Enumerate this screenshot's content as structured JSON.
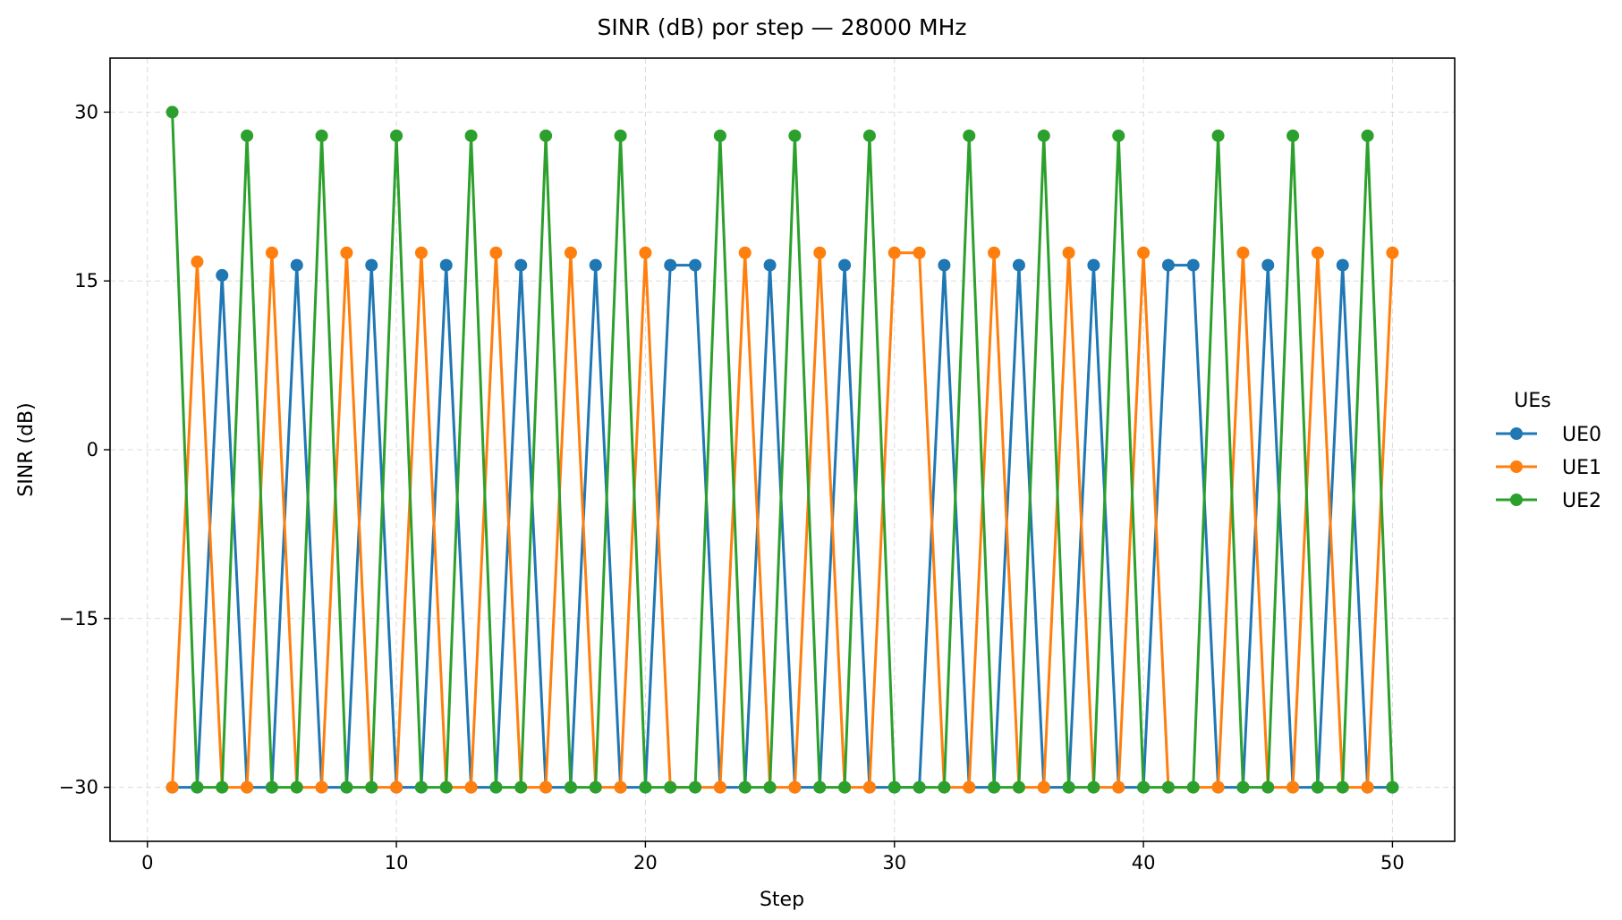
{
  "chart_data": {
    "type": "line",
    "title": "SINR (dB) por step — 28000 MHz",
    "xlabel": "Step",
    "ylabel": "SINR (dB)",
    "xlim": [
      -1.5,
      52.5
    ],
    "ylim": [
      -34.8,
      34.8
    ],
    "xticks": [
      0,
      10,
      20,
      30,
      40,
      50
    ],
    "yticks": [
      30,
      15,
      0,
      -15,
      -30
    ],
    "ytick_labels": [
      "30",
      "15",
      "0",
      "−15",
      "−30"
    ],
    "grid": true,
    "legend": {
      "title": "UEs",
      "position": "outside-right"
    },
    "x": [
      1,
      2,
      3,
      4,
      5,
      6,
      7,
      8,
      9,
      10,
      11,
      12,
      13,
      14,
      15,
      16,
      17,
      18,
      19,
      20,
      21,
      22,
      23,
      24,
      25,
      26,
      27,
      28,
      29,
      30,
      31,
      32,
      33,
      34,
      35,
      36,
      37,
      38,
      39,
      40,
      41,
      42,
      43,
      44,
      45,
      46,
      47,
      48,
      49,
      50
    ],
    "series": [
      {
        "name": "UE0",
        "color": "#1f77b4",
        "values": [
          -30,
          -30,
          15.5,
          -30,
          -30,
          16.4,
          -30,
          -30,
          16.4,
          -30,
          -30,
          16.4,
          -30,
          -30,
          16.4,
          -30,
          -30,
          16.4,
          -30,
          -30,
          16.4,
          16.4,
          -30,
          -30,
          16.4,
          -30,
          -30,
          16.4,
          -30,
          -30,
          -30,
          16.4,
          -30,
          -30,
          16.4,
          -30,
          -30,
          16.4,
          -30,
          -30,
          16.4,
          16.4,
          -30,
          -30,
          16.4,
          -30,
          -30,
          16.4,
          -30,
          -30
        ]
      },
      {
        "name": "UE1",
        "color": "#ff7f0e",
        "values": [
          -30,
          16.7,
          -30,
          -30,
          17.5,
          -30,
          -30,
          17.5,
          -30,
          -30,
          17.5,
          -30,
          -30,
          17.5,
          -30,
          -30,
          17.5,
          -30,
          -30,
          17.5,
          -30,
          -30,
          -30,
          17.5,
          -30,
          -30,
          17.5,
          -30,
          -30,
          17.5,
          17.5,
          -30,
          -30,
          17.5,
          -30,
          -30,
          17.5,
          -30,
          -30,
          17.5,
          -30,
          -30,
          -30,
          17.5,
          -30,
          -30,
          17.5,
          -30,
          -30,
          17.5
        ]
      },
      {
        "name": "UE2",
        "color": "#2ca02c",
        "values": [
          30,
          -30,
          -30,
          27.9,
          -30,
          -30,
          27.9,
          -30,
          -30,
          27.9,
          -30,
          -30,
          27.9,
          -30,
          -30,
          27.9,
          -30,
          -30,
          27.9,
          -30,
          -30,
          -30,
          27.9,
          -30,
          -30,
          27.9,
          -30,
          -30,
          27.9,
          -30,
          -30,
          -30,
          27.9,
          -30,
          -30,
          27.9,
          -30,
          -30,
          27.9,
          -30,
          -30,
          -30,
          27.9,
          -30,
          -30,
          27.9,
          -30,
          -30,
          27.9,
          -30
        ]
      }
    ]
  }
}
